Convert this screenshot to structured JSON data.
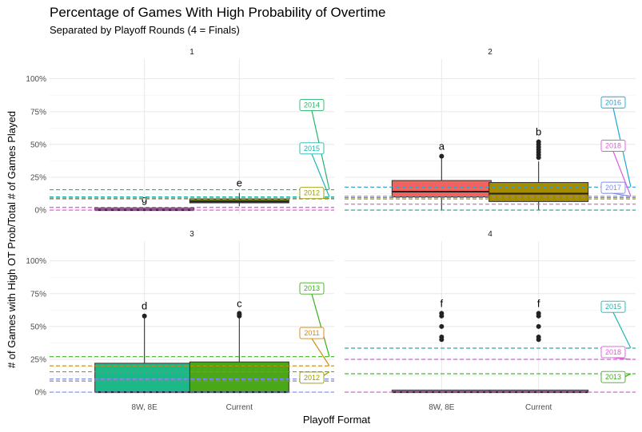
{
  "chart_data": {
    "type": "box",
    "title": "Percentage of Games With High Probability of Overtime",
    "subtitle": "Separated by Playoff Rounds (4 = Finals)",
    "xlabel": "Playoff Format",
    "ylabel": "# of Games with High OT Prob/Total # of Games Played",
    "categories": [
      "8W, 8E",
      "Current"
    ],
    "ylim": [
      -0.03,
      1.15
    ],
    "yticks": [
      0,
      0.25,
      0.5,
      0.75,
      1.0
    ],
    "ytick_labels": [
      "0%",
      "25%",
      "50%",
      "75%",
      "100%"
    ],
    "grid": true,
    "colors": {
      "r2014": "#27b36b",
      "r2015": "#1bb5ad",
      "r2016": "#1fa4d9",
      "r2017": "#7b8cf0",
      "r2018": "#dc5ad9",
      "r2012": "#9a9a00",
      "r2011": "#d4860c",
      "r2013": "#3cae1c",
      "magenta": "#e04fd3",
      "red": "#f0645f",
      "gray": "#888888",
      "teal": "#13a68d"
    },
    "panels": [
      {
        "label": "1",
        "boxes": [
          {
            "category": "8W, 8E",
            "q1": 0.0,
            "median": 0.0,
            "q3": 0.005,
            "lower": 0.0,
            "upper": 0.005,
            "outliers": [],
            "fill": "#e04fd3",
            "letter": "g"
          },
          {
            "category": "Current",
            "q1": 0.055,
            "median": 0.065,
            "q3": 0.085,
            "lower": 0.03,
            "upper": 0.13,
            "outliers": [],
            "fill": "#6b7d0e",
            "letter": "e"
          }
        ],
        "hlines": [
          {
            "y": 0.155,
            "color": "#27b36b"
          },
          {
            "y": 0.1,
            "color": "#1bb5ad"
          },
          {
            "y": 0.09,
            "color": "#9a9a00"
          },
          {
            "y": 0.085,
            "color": "#7b8cf0"
          },
          {
            "y": 0.02,
            "color": "#e04fd3"
          },
          {
            "y": 0.0,
            "color": "#e04fd3"
          }
        ],
        "labels": [
          {
            "text": "2014",
            "y": 0.8,
            "ty": 0.155,
            "color": "#27b36b"
          },
          {
            "text": "2015",
            "y": 0.47,
            "ty": 0.1,
            "color": "#1bb5ad"
          },
          {
            "text": "2012",
            "y": 0.13,
            "ty": 0.09,
            "color": "#9a9a00"
          }
        ]
      },
      {
        "label": "2",
        "boxes": [
          {
            "category": "8W, 8E",
            "q1": 0.1,
            "median": 0.14,
            "q3": 0.225,
            "lower": 0.0,
            "upper": 0.41,
            "outliers": [
              0.41
            ],
            "fill": "#f0645f",
            "letter": "a"
          },
          {
            "category": "Current",
            "q1": 0.065,
            "median": 0.125,
            "q3": 0.21,
            "lower": 0.0,
            "upper": 0.37,
            "outliers": [
              0.4,
              0.42,
              0.44,
              0.46,
              0.48,
              0.5,
              0.52
            ],
            "fill": "#a68a00",
            "letter": "b"
          }
        ],
        "hlines": [
          {
            "y": 0.175,
            "color": "#1fa4d9"
          },
          {
            "y": 0.105,
            "color": "#7b8cf0"
          },
          {
            "y": 0.095,
            "color": "#888888"
          },
          {
            "y": 0.085,
            "color": "#9a9a00"
          },
          {
            "y": 0.045,
            "color": "#dc5ad9"
          },
          {
            "y": 0.0,
            "color": "#13a68d"
          }
        ],
        "labels": [
          {
            "text": "2016",
            "y": 0.82,
            "ty": 0.175,
            "color": "#1fa4d9"
          },
          {
            "text": "2018",
            "y": 0.49,
            "ty": 0.105,
            "color": "#dc5ad9"
          },
          {
            "text": "2017",
            "y": 0.17,
            "ty": 0.105,
            "color": "#7b8cf0"
          }
        ]
      },
      {
        "label": "3",
        "boxes": [
          {
            "category": "8W, 8E",
            "q1": 0.0,
            "median": 0.0,
            "q3": 0.22,
            "lower": 0.0,
            "upper": 0.58,
            "outliers": [
              0.58
            ],
            "fill": "#1db88a",
            "letter": "d"
          },
          {
            "category": "Current",
            "q1": 0.0,
            "median": 0.0,
            "q3": 0.23,
            "lower": 0.0,
            "upper": 0.58,
            "outliers": [
              0.58,
              0.59,
              0.6
            ],
            "fill": "#4aa818",
            "letter": "c"
          }
        ],
        "hlines": [
          {
            "y": 0.27,
            "color": "#3cae1c"
          },
          {
            "y": 0.2,
            "color": "#d4860c"
          },
          {
            "y": 0.155,
            "color": "#9a9a00"
          },
          {
            "y": 0.1,
            "color": "#7b8cf0"
          },
          {
            "y": 0.085,
            "color": "#888888"
          },
          {
            "y": 0.0,
            "color": "#7b8cf0"
          }
        ],
        "labels": [
          {
            "text": "2013",
            "y": 0.79,
            "ty": 0.27,
            "color": "#3cae1c"
          },
          {
            "text": "2011",
            "y": 0.45,
            "ty": 0.2,
            "color": "#d4860c"
          },
          {
            "text": "2012",
            "y": 0.11,
            "ty": 0.155,
            "color": "#9a9a00"
          }
        ]
      },
      {
        "label": "4",
        "boxes": [
          {
            "category": "8W, 8E",
            "q1": 0.0,
            "median": 0.0,
            "q3": 0.0,
            "lower": 0.0,
            "upper": 0.0,
            "outliers": [
              0.4,
              0.42,
              0.5,
              0.58,
              0.6
            ],
            "fill": "#e04fd3",
            "letter": "f"
          },
          {
            "category": "Current",
            "q1": 0.0,
            "median": 0.0,
            "q3": 0.0,
            "lower": 0.0,
            "upper": 0.0,
            "outliers": [
              0.4,
              0.42,
              0.5,
              0.58,
              0.6
            ],
            "fill": "#e04fd3",
            "letter": "f"
          }
        ],
        "hlines": [
          {
            "y": 0.335,
            "color": "#1bb5ad"
          },
          {
            "y": 0.25,
            "color": "#dc5ad9"
          },
          {
            "y": 0.14,
            "color": "#3cae1c"
          },
          {
            "y": 0.0,
            "color": "#e04fd3"
          }
        ],
        "labels": [
          {
            "text": "2015",
            "y": 0.65,
            "ty": 0.335,
            "color": "#1bb5ad"
          },
          {
            "text": "2018",
            "y": 0.305,
            "ty": 0.25,
            "color": "#dc5ad9"
          },
          {
            "text": "2013",
            "y": 0.115,
            "ty": 0.14,
            "color": "#3cae1c"
          }
        ]
      }
    ]
  }
}
